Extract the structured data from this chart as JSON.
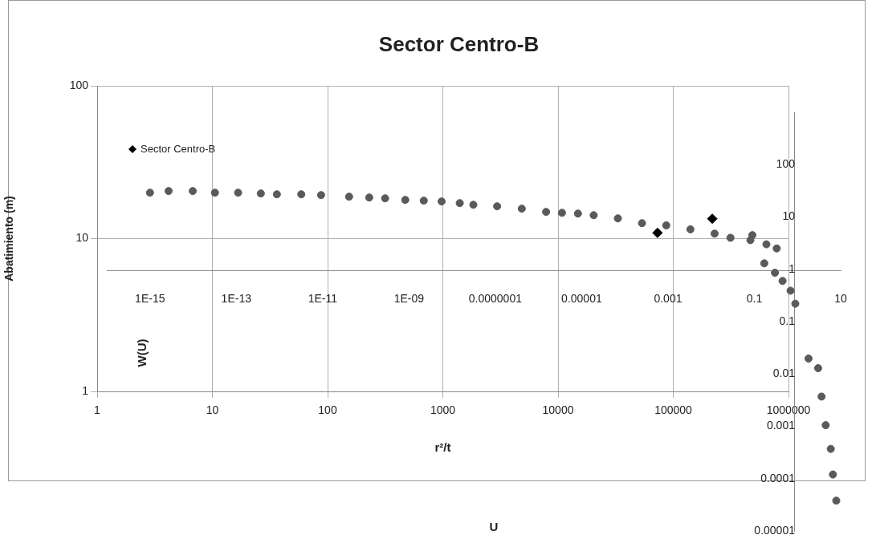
{
  "chart_data": [
    {
      "type": "scatter",
      "title": "Sector Centro-B",
      "xlabel": "r²/t",
      "ylabel": "Abatimiento (m)",
      "log": "xy",
      "xlim": [
        1,
        1000000
      ],
      "ylim": [
        1,
        100
      ],
      "xticks": [
        1,
        10,
        100,
        1000,
        10000,
        100000,
        1000000
      ],
      "yticks": [
        1,
        10,
        100
      ],
      "grid": true,
      "legend": "top left",
      "marker": "diamond",
      "series": [
        {
          "name": "Sector Centro-B",
          "color": "#000000",
          "x": [
            73000,
            218000
          ],
          "values": [
            10.9,
            13.5
          ]
        }
      ]
    },
    {
      "type": "scatter",
      "xlabel": "U",
      "ylabel": "W(U)",
      "log": "xy",
      "xlim": [
        1e-16,
        10
      ],
      "ylim": [
        1e-05,
        1000
      ],
      "xticks": [
        {
          "value": 1e-15,
          "label": "1E-15"
        },
        {
          "value": 1e-13,
          "label": "1E-13"
        },
        {
          "value": 1e-11,
          "label": "1E-11"
        },
        {
          "value": 1e-09,
          "label": "1E-09"
        },
        {
          "value": 1e-07,
          "label": "0.0000001"
        },
        {
          "value": 1e-05,
          "label": "0.00001"
        },
        {
          "value": 0.001,
          "label": "0.001"
        },
        {
          "value": 0.1,
          "label": "0.1"
        },
        {
          "value": 10,
          "label": "10"
        }
      ],
      "yticks": [
        {
          "value": 1e-05,
          "label": "0.00001"
        },
        {
          "value": 0.0001,
          "label": "0.0001"
        },
        {
          "value": 0.001,
          "label": "0.001"
        },
        {
          "value": 0.01,
          "label": "0.01"
        },
        {
          "value": 0.1,
          "label": "0.1"
        },
        {
          "value": 1,
          "label": "1"
        },
        {
          "value": 10,
          "label": "10"
        },
        {
          "value": 100,
          "label": "100"
        }
      ],
      "marker": "circle",
      "series": [
        {
          "color": "#5a5a5a",
          "x": [
            1e-15,
            2.7e-15,
            9.8e-15,
            3.2e-14,
            1.1e-13,
            3.7e-13,
            8.7e-13,
            3.2e-12,
            9.2e-12,
            4.1e-11,
            1.2e-10,
            2.8e-10,
            8.2e-10,
            2.2e-09,
            5.7e-09,
            1.5e-08,
            3.1e-08,
            1.1e-07,
            4.1e-07,
            1.5e-06,
            3.5e-06,
            8.2e-06,
            1.9e-05,
            6.9e-05,
            0.00025,
            0.00091,
            0.0033,
            0.012,
            0.028,
            0.081,
            0.19,
            0.33,
            0.09,
            0.17,
            0.3,
            0.45,
            0.69,
            0.89,
            1.8,
            3.0,
            3.6,
            4.5,
            5.9,
            6.6,
            7.9
          ],
          "values": [
            29.1,
            31.3,
            31.3,
            29.1,
            29.1,
            28.1,
            27.1,
            27.1,
            26.2,
            24.4,
            23.5,
            22.7,
            21.2,
            20.5,
            19.8,
            18.4,
            17.1,
            16.0,
            14.4,
            12.5,
            12.0,
            11.6,
            10.8,
            9.4,
            7.6,
            6.9,
            5.8,
            4.8,
            4.0,
            3.6,
            3.0,
            2.5,
            4.5,
            1.3,
            0.86,
            0.6,
            0.39,
            0.22,
            0.0197,
            0.0129,
            0.0037,
            0.00105,
            0.00037,
            0.00012,
            3.8e-05
          ]
        }
      ]
    }
  ]
}
